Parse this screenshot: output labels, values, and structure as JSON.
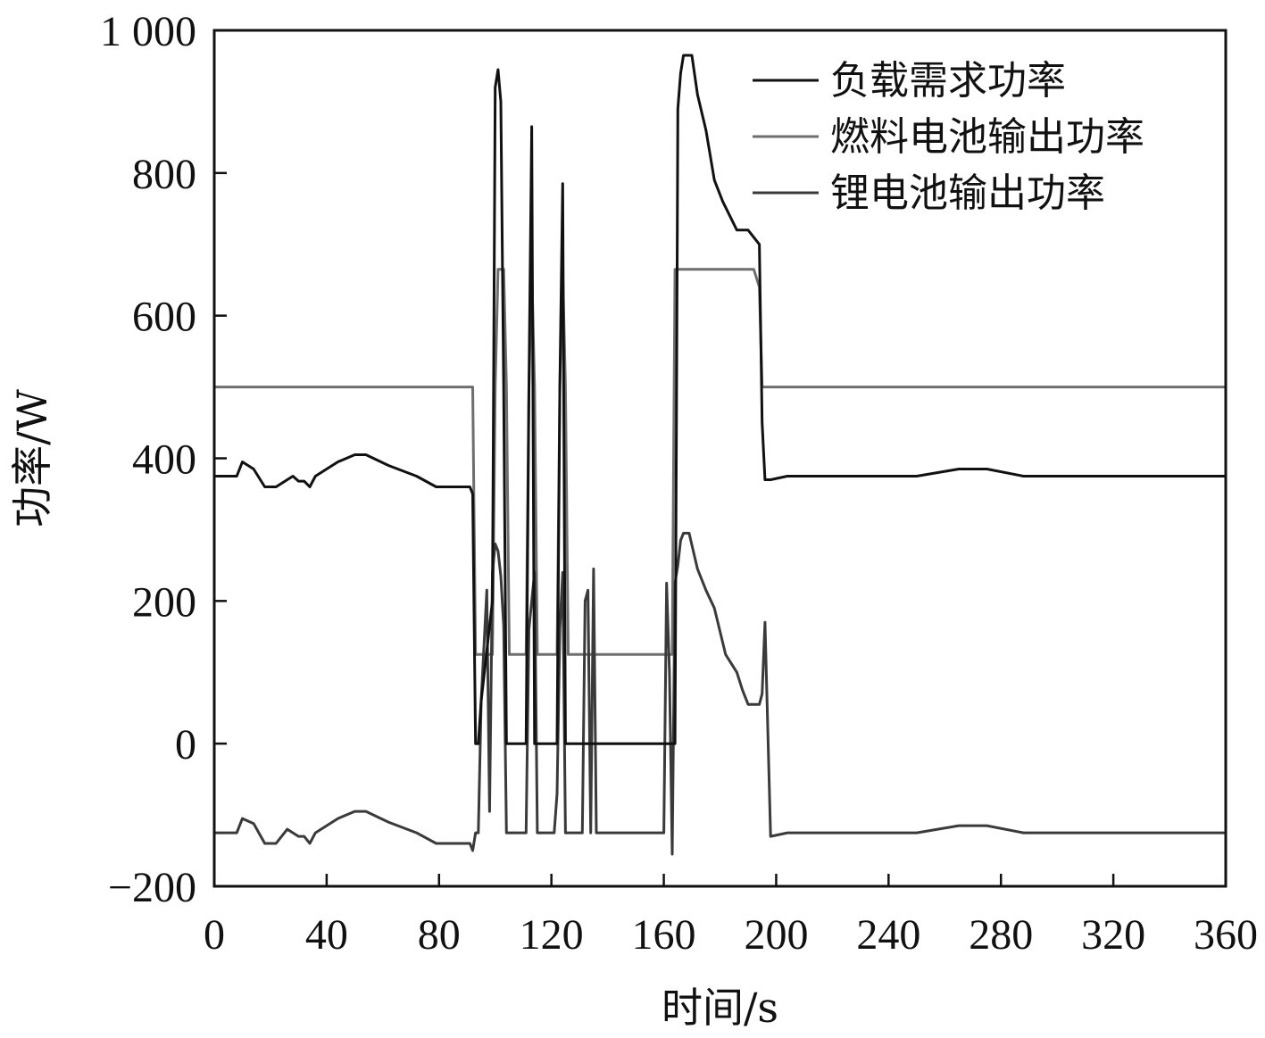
{
  "chart_data": {
    "type": "line",
    "title": "",
    "xlabel": "时间/s",
    "ylabel": "功率/W",
    "xlim": [
      0,
      360
    ],
    "ylim": [
      -200,
      1000
    ],
    "xticks": [
      0,
      40,
      80,
      120,
      160,
      200,
      240,
      280,
      320,
      360
    ],
    "yticks": [
      -200,
      0,
      200,
      400,
      600,
      800,
      1000
    ],
    "xtick_labels": [
      "0",
      "40",
      "80",
      "120",
      "160",
      "200",
      "240",
      "280",
      "320",
      "360"
    ],
    "ytick_labels": [
      "−200",
      "0",
      "200",
      "400",
      "600",
      "800",
      "1 000"
    ],
    "grid": false,
    "legend_position": "top-right",
    "series": [
      {
        "name": "负载需求功率",
        "color": "#111111",
        "x": [
          0,
          8,
          10,
          14,
          18,
          22,
          26,
          28,
          30,
          32,
          34,
          36,
          44,
          50,
          54,
          62,
          72,
          79,
          91,
          92,
          93,
          94,
          95,
          97,
          99,
          100,
          101,
          102,
          103,
          104,
          105,
          106,
          107,
          111,
          112,
          113,
          114,
          115,
          116,
          117,
          121,
          122,
          123,
          124,
          125,
          126,
          127,
          128,
          131,
          132,
          133,
          134,
          135,
          136,
          137,
          160,
          161,
          162,
          163,
          164,
          165,
          166,
          167,
          168,
          170,
          172,
          175,
          178,
          181,
          186,
          190,
          192,
          194,
          195,
          196,
          198,
          204,
          250,
          265,
          275,
          288,
          360
        ],
        "y": [
          375,
          375,
          395,
          385,
          360,
          360,
          370,
          375,
          368,
          368,
          360,
          375,
          395,
          405,
          405,
          390,
          375,
          360,
          360,
          350,
          0,
          0,
          60,
          130,
          200,
          920,
          945,
          900,
          500,
          0,
          0,
          0,
          0,
          0,
          500,
          865,
          0,
          0,
          0,
          0,
          0,
          0,
          500,
          785,
          0,
          0,
          0,
          0,
          0,
          0,
          0,
          0,
          0,
          0,
          0,
          0,
          0,
          0,
          0,
          0,
          890,
          940,
          965,
          965,
          965,
          910,
          860,
          790,
          760,
          720,
          720,
          710,
          700,
          450,
          370,
          370,
          375,
          375,
          385,
          385,
          375,
          375
        ]
      },
      {
        "name": "燃料电池输出功率",
        "color": "#6e6e6e",
        "x": [
          0,
          91,
          92,
          93,
          99,
          100,
          101,
          102,
          103,
          104,
          105,
          111,
          112,
          113,
          114,
          115,
          121,
          122,
          123,
          124,
          125,
          126,
          159,
          160,
          161,
          162,
          163,
          164,
          192,
          194,
          195,
          196,
          360
        ],
        "y": [
          500,
          500,
          500,
          125,
          125,
          500,
          665,
          665,
          665,
          500,
          125,
          125,
          500,
          665,
          500,
          125,
          125,
          125,
          500,
          665,
          500,
          125,
          125,
          125,
          125,
          125,
          125,
          665,
          665,
          640,
          500,
          500,
          500
        ]
      },
      {
        "name": "锂电池输出功率",
        "color": "#3a3a3a",
        "x": [
          0,
          8,
          10,
          14,
          18,
          22,
          26,
          28,
          30,
          32,
          34,
          36,
          44,
          50,
          54,
          62,
          72,
          79,
          91,
          92,
          93,
          94,
          95,
          97,
          98,
          99,
          100,
          101,
          102,
          103,
          104,
          105,
          106,
          110,
          111,
          112,
          113,
          114,
          115,
          116,
          117,
          121,
          122,
          123,
          124,
          125,
          126,
          127,
          128,
          131,
          132,
          133,
          134,
          135,
          136,
          137,
          160,
          161,
          162,
          163,
          164,
          165,
          166,
          167,
          169,
          172,
          175,
          178,
          182,
          186,
          188,
          190,
          192,
          194,
          195,
          196,
          198,
          204,
          250,
          265,
          275,
          288,
          360
        ],
        "y": [
          -125,
          -125,
          -105,
          -112,
          -140,
          -140,
          -120,
          -125,
          -130,
          -130,
          -140,
          -125,
          -105,
          -95,
          -95,
          -110,
          -125,
          -140,
          -140,
          -150,
          -125,
          -125,
          60,
          215,
          -95,
          240,
          280,
          270,
          235,
          165,
          -125,
          -125,
          -125,
          -125,
          -125,
          160,
          200,
          240,
          -125,
          -125,
          -125,
          -125,
          -70,
          160,
          240,
          -125,
          -125,
          -125,
          -125,
          -125,
          200,
          215,
          -125,
          245,
          -125,
          -125,
          -125,
          225,
          100,
          -155,
          225,
          250,
          285,
          295,
          295,
          245,
          215,
          190,
          125,
          100,
          75,
          55,
          55,
          55,
          70,
          170,
          -130,
          -125,
          -125,
          -115,
          -115,
          -125,
          -125
        ]
      }
    ]
  }
}
